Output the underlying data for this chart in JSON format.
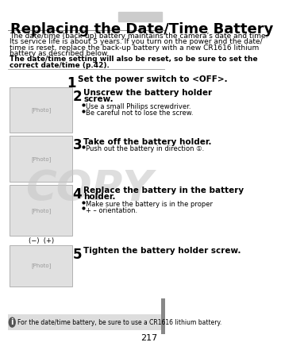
{
  "title": "Replacing the Date/Time Battery",
  "title_bar_color": "#cccccc",
  "bg_color": "#ffffff",
  "page_number": "217",
  "header_text": [
    "The date/time (back-up) battery maintains the camera’s date and time.",
    "Its service life is about 5 years. If you turn on the power and the date/",
    "time is reset, replace the back-up battery with a new CR1616 lithium",
    "battery as described below."
  ],
  "bold_text": "The date/time setting will also be reset, so be sure to set the",
  "bold_text2": "correct date/time (p.42).",
  "steps": [
    {
      "num": "1",
      "title": "Set the power switch to <OFF>.",
      "bullets": [],
      "has_image": false
    },
    {
      "num": "2",
      "title": "Unscrew the battery holder\nscrew.",
      "bullets": [
        "Use a small Philips screwdriver.",
        "Be careful not to lose the screw."
      ],
      "has_image": true
    },
    {
      "num": "3",
      "title": "Take off the battery holder.",
      "bullets": [
        "Push out the battery in direction ①."
      ],
      "has_image": true
    },
    {
      "num": "4",
      "title": "Replace the battery in the battery\nholder.",
      "bullets": [
        "Make sure the battery is in the proper",
        "+ – orientation."
      ],
      "has_image": true,
      "caption": "(−)  (+)"
    },
    {
      "num": "5",
      "title": "Tighten the battery holder screw.",
      "bullets": [],
      "has_image": true
    }
  ],
  "footer_icon_color": "#333333",
  "footer_text": "For the date/time battery, be sure to use a CR1616 lithium battery.",
  "footer_bg": "#dddddd",
  "divider_color": "#888888",
  "copy_watermark": "COPY",
  "copy_color": "#c8c8c8",
  "image_bg": "#e0e0e0",
  "step_num_color": "#000000",
  "title_font_size": 13,
  "body_font_size": 6.5,
  "step_title_font_size": 7.5,
  "bullet_font_size": 6.0,
  "page_bg": "#f0f0f0"
}
